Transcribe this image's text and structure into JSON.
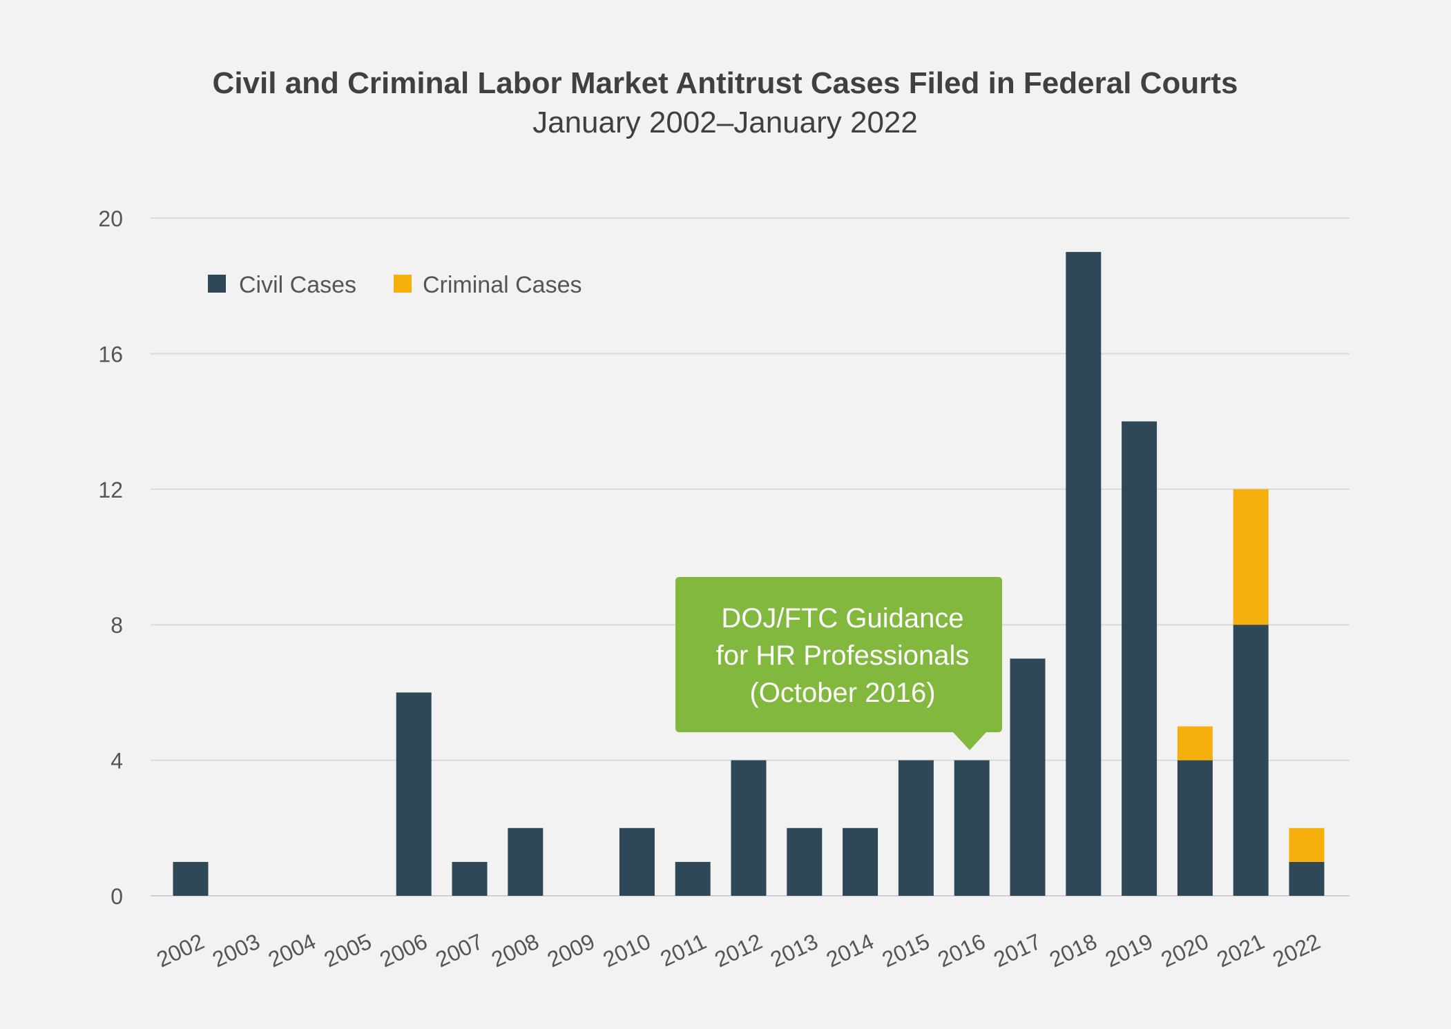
{
  "chart_data": {
    "type": "bar",
    "stacked": true,
    "title": "Civil and Criminal Labor Market Antitrust Cases Filed in Federal Courts",
    "subtitle": "January 2002–January 2022",
    "xlabel": "",
    "ylabel": "",
    "ylim": [
      0,
      20
    ],
    "yticks": [
      "0",
      "4",
      "8",
      "12",
      "16",
      "20"
    ],
    "grid": true,
    "legend_placement": "top-left",
    "categories": [
      "2002",
      "2003",
      "2004",
      "2005",
      "2006",
      "2007",
      "2008",
      "2009",
      "2010",
      "2011",
      "2012",
      "2013",
      "2014",
      "2015",
      "2016",
      "2017",
      "2018",
      "2019",
      "2020",
      "2021",
      "2022"
    ],
    "series": [
      {
        "name": "Civil Cases",
        "color": "#2f4858",
        "values": [
          1,
          0,
          0,
          0,
          6,
          1,
          2,
          0,
          2,
          1,
          4,
          2,
          2,
          4,
          4,
          7,
          19,
          14,
          4,
          8,
          1
        ]
      },
      {
        "name": "Criminal Cases",
        "color": "#f5b00e",
        "values": [
          0,
          0,
          0,
          0,
          0,
          0,
          0,
          0,
          0,
          0,
          0,
          0,
          0,
          0,
          0,
          0,
          0,
          0,
          1,
          4,
          1
        ]
      }
    ],
    "annotation": {
      "lines": [
        "DOJ/FTC Guidance",
        "for HR Professionals",
        "(October 2016)"
      ],
      "category": "2016",
      "color": "#82b83e"
    }
  }
}
